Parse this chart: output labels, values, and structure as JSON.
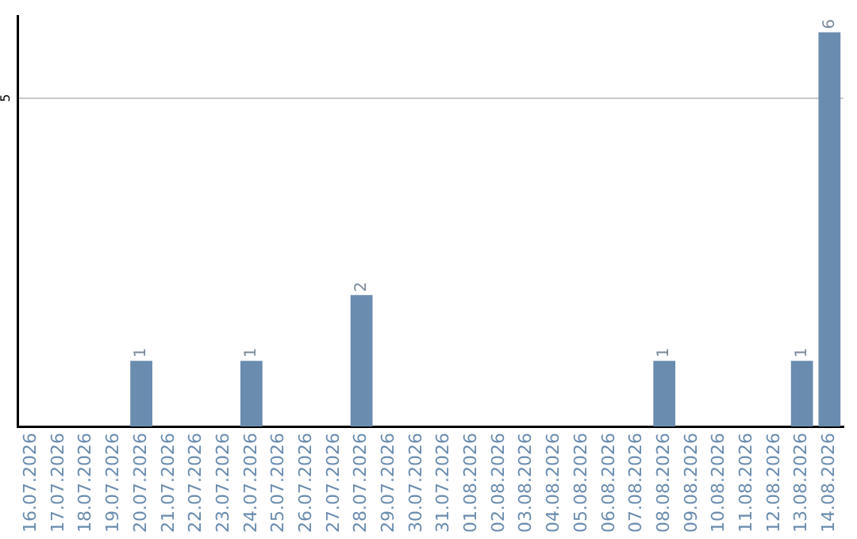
{
  "chart_data": {
    "type": "bar",
    "categories": [
      "16.07.2026",
      "17.07.2026",
      "18.07.2026",
      "19.07.2026",
      "20.07.2026",
      "21.07.2026",
      "22.07.2026",
      "23.07.2026",
      "24.07.2026",
      "25.07.2026",
      "26.07.2026",
      "27.07.2026",
      "28.07.2026",
      "29.07.2026",
      "30.07.2026",
      "31.07.2026",
      "01.08.2026",
      "02.08.2026",
      "03.08.2026",
      "04.08.2026",
      "05.08.2026",
      "06.08.2026",
      "07.08.2026",
      "08.08.2026",
      "09.08.2026",
      "10.08.2026",
      "11.08.2026",
      "12.08.2026",
      "13.08.2026",
      "14.08.2026"
    ],
    "values": [
      0,
      0,
      0,
      0,
      1,
      0,
      0,
      0,
      1,
      0,
      0,
      0,
      2,
      0,
      0,
      0,
      0,
      0,
      0,
      0,
      0,
      0,
      0,
      1,
      0,
      0,
      0,
      0,
      1,
      6
    ],
    "value_labels": [
      null,
      null,
      null,
      null,
      "1",
      null,
      null,
      null,
      "1",
      null,
      null,
      null,
      "2",
      null,
      null,
      null,
      null,
      null,
      null,
      null,
      null,
      null,
      null,
      "1",
      null,
      null,
      null,
      null,
      "1",
      "6"
    ],
    "color": "#6a8caf",
    "ylim": [
      0,
      6.25
    ],
    "yticks": [
      5
    ],
    "grid": "y",
    "legend": false
  }
}
